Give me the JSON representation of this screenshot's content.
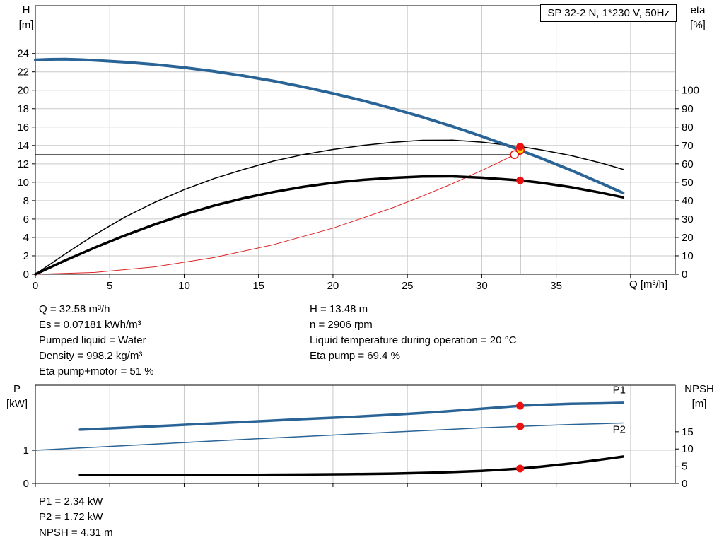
{
  "axes_labels": {
    "h": [
      "H",
      "[m]"
    ],
    "eta": [
      "eta",
      "[%]"
    ],
    "q": "Q [m³/h]",
    "p": [
      "P",
      "[kW]"
    ],
    "npsh": [
      "NPSH",
      "[m]"
    ]
  },
  "info_top_left": [
    "Q = 32.58 m³/h",
    "Es = 0.07181 kWh/m³",
    "Pumped liquid = Water",
    "Density = 998.2 kg/m³",
    "Eta pump+motor = 51 %"
  ],
  "info_top_right": [
    "H = 13.48 m",
    "n = 2906 rpm",
    "Liquid temperature during operation = 20 °C",
    "Eta pump = 69.4 %"
  ],
  "info_bottom": [
    "P1 = 2.34 kW",
    "P2 = 1.72 kW",
    "NPSH = 4.31 m"
  ],
  "colors": {
    "curve_blue": "#2a6496",
    "curve_black": "#000000",
    "curve_red": "#dd2222",
    "marker_red": "#ee1111",
    "marker_yellow": "#ffd400",
    "grid": "#c9c9c9"
  },
  "chart_data": [
    {
      "type": "line",
      "title": "SP 32-2 N, 1*230 V, 50Hz",
      "x": {
        "label": "Q [m³/h]",
        "min": 0,
        "max": 43,
        "ticks": [
          0,
          5,
          10,
          15,
          20,
          25,
          30,
          35
        ],
        "extra_gridlines": [
          40
        ],
        "show_labels": true
      },
      "y_left": {
        "label": "H [m]",
        "min": 0,
        "max": 29.2,
        "ticks": [
          0,
          2,
          4,
          6,
          8,
          10,
          12,
          14,
          16,
          18,
          20,
          22,
          24
        ]
      },
      "y_right": {
        "label": "eta [%]",
        "min": 0,
        "max": 146,
        "ticks": [
          0,
          10,
          20,
          30,
          40,
          50,
          60,
          70,
          80,
          90,
          100
        ]
      },
      "series": [
        {
          "name": "system-curve",
          "axis": "left",
          "color": "#dd2222",
          "width": 1,
          "points": [
            [
              0,
              0
            ],
            [
              4,
              0.2
            ],
            [
              8,
              0.8
            ],
            [
              12,
              1.81
            ],
            [
              16,
              3.21
            ],
            [
              20,
              5.01
            ],
            [
              24,
              7.22
            ],
            [
              26,
              8.48
            ],
            [
              28,
              9.83
            ],
            [
              30,
              11.28
            ],
            [
              31,
              12.05
            ],
            [
              32.2,
              13.0
            ],
            [
              32.7,
              13.4
            ]
          ]
        },
        {
          "name": "eta-pump",
          "axis": "right",
          "color": "#000000",
          "width": 1.5,
          "points": [
            [
              0,
              0
            ],
            [
              2,
              11
            ],
            [
              4,
              21.5
            ],
            [
              6,
              31
            ],
            [
              8,
              39
            ],
            [
              10,
              46
            ],
            [
              12,
              52
            ],
            [
              14,
              57
            ],
            [
              16,
              61.5
            ],
            [
              18,
              65
            ],
            [
              20,
              67.8
            ],
            [
              22,
              70
            ],
            [
              24,
              71.7
            ],
            [
              26,
              72.8
            ],
            [
              28,
              72.9
            ],
            [
              30,
              71.8
            ],
            [
              32.58,
              69.4
            ],
            [
              34,
              67.6
            ],
            [
              36,
              64.5
            ],
            [
              38,
              60.5
            ],
            [
              39.5,
              57
            ]
          ]
        },
        {
          "name": "eta-pump-motor",
          "axis": "right",
          "color": "#000000",
          "width": 3.5,
          "points": [
            [
              0,
              0
            ],
            [
              2,
              7.5
            ],
            [
              4,
              14.5
            ],
            [
              6,
              21
            ],
            [
              8,
              27
            ],
            [
              10,
              32.5
            ],
            [
              12,
              37.3
            ],
            [
              14,
              41.3
            ],
            [
              16,
              44.7
            ],
            [
              18,
              47.5
            ],
            [
              20,
              49.7
            ],
            [
              22,
              51.3
            ],
            [
              24,
              52.4
            ],
            [
              26,
              53.1
            ],
            [
              28,
              53.2
            ],
            [
              30,
              52.5
            ],
            [
              32.58,
              51
            ],
            [
              34,
              49.7
            ],
            [
              36,
              47.3
            ],
            [
              38,
              44.3
            ],
            [
              39.5,
              41.8
            ]
          ]
        },
        {
          "name": "H",
          "axis": "left",
          "color": "#2a6496",
          "width": 4,
          "points": [
            [
              0,
              23.3
            ],
            [
              1,
              23.36
            ],
            [
              2,
              23.38
            ],
            [
              3,
              23.33
            ],
            [
              4,
              23.25
            ],
            [
              6,
              23.06
            ],
            [
              8,
              22.8
            ],
            [
              10,
              22.47
            ],
            [
              12,
              22.06
            ],
            [
              14,
              21.57
            ],
            [
              16,
              21.01
            ],
            [
              18,
              20.37
            ],
            [
              20,
              19.66
            ],
            [
              22,
              18.88
            ],
            [
              24,
              18.02
            ],
            [
              26,
              17.09
            ],
            [
              28,
              16.08
            ],
            [
              30,
              14.99
            ],
            [
              32,
              13.84
            ],
            [
              32.58,
              13.48
            ],
            [
              34,
              12.6
            ],
            [
              36,
              11.3
            ],
            [
              38,
              9.91
            ],
            [
              39.5,
              8.83
            ]
          ]
        }
      ],
      "guide_lines": [
        {
          "type": "h",
          "value": 13,
          "from_x": 0,
          "to_x": 32.58
        },
        {
          "type": "v",
          "x": 32.58,
          "from": 0,
          "to": 14.05
        }
      ],
      "markers": [
        {
          "name": "h-duty-point",
          "x": 32.58,
          "axis": "left",
          "value": 13.48,
          "style": "yellow"
        },
        {
          "name": "eta-pump-duty-point",
          "x": 32.58,
          "axis": "right",
          "value": 69.4,
          "style": "red"
        },
        {
          "name": "eta-pump-motor-duty-point",
          "x": 32.58,
          "axis": "right",
          "value": 51,
          "style": "red"
        },
        {
          "name": "system-curve-setpoint",
          "x": 32.2,
          "axis": "left",
          "value": 13.0,
          "style": "open"
        }
      ]
    },
    {
      "type": "line",
      "title": "Power and NPSH curves",
      "x": {
        "label": "Q [m³/h]",
        "min": 0,
        "max": 43,
        "ticks": [
          0,
          5,
          10,
          15,
          20,
          25,
          30,
          35,
          40
        ],
        "show_labels": false
      },
      "y_left": {
        "label": "P [kW]",
        "min": 0,
        "max": 2.96,
        "ticks": [
          0,
          1
        ]
      },
      "y_right": {
        "label": "NPSH [m]",
        "min": 0,
        "max": 28.5,
        "ticks": [
          0,
          5,
          10,
          15
        ]
      },
      "series": [
        {
          "name": "P1",
          "axis": "left",
          "color": "#2a6496",
          "width": 3.5,
          "label": {
            "text": "P1",
            "x": 38.8,
            "value": 2.72
          },
          "points": [
            [
              3,
              1.62
            ],
            [
              6,
              1.68
            ],
            [
              9,
              1.745
            ],
            [
              12,
              1.81
            ],
            [
              15,
              1.875
            ],
            [
              18,
              1.94
            ],
            [
              21,
              2.0
            ],
            [
              24,
              2.07
            ],
            [
              27,
              2.15
            ],
            [
              30,
              2.25
            ],
            [
              32.58,
              2.34
            ],
            [
              34,
              2.37
            ],
            [
              36,
              2.4
            ],
            [
              38,
              2.415
            ],
            [
              39.5,
              2.43
            ]
          ]
        },
        {
          "name": "P2",
          "axis": "left",
          "color": "#2a6496",
          "width": 1.5,
          "label": {
            "text": "P2",
            "x": 38.8,
            "value": 1.52
          },
          "points": [
            [
              0,
              1.0
            ],
            [
              3,
              1.07
            ],
            [
              6,
              1.14
            ],
            [
              9,
              1.21
            ],
            [
              12,
              1.28
            ],
            [
              15,
              1.35
            ],
            [
              18,
              1.415
            ],
            [
              21,
              1.48
            ],
            [
              24,
              1.545
            ],
            [
              27,
              1.61
            ],
            [
              30,
              1.675
            ],
            [
              32.58,
              1.72
            ],
            [
              34,
              1.745
            ],
            [
              36,
              1.775
            ],
            [
              38,
              1.8
            ],
            [
              39.5,
              1.82
            ]
          ]
        },
        {
          "name": "NPSH",
          "axis": "right",
          "color": "#000000",
          "width": 3.5,
          "points": [
            [
              3,
              2.5
            ],
            [
              6,
              2.5
            ],
            [
              9,
              2.5
            ],
            [
              12,
              2.5
            ],
            [
              15,
              2.52
            ],
            [
              18,
              2.58
            ],
            [
              21,
              2.68
            ],
            [
              24,
              2.85
            ],
            [
              27,
              3.15
            ],
            [
              30,
              3.65
            ],
            [
              32.58,
              4.31
            ],
            [
              34,
              4.85
            ],
            [
              36,
              5.8
            ],
            [
              38,
              6.9
            ],
            [
              39.5,
              7.8
            ]
          ]
        }
      ],
      "markers": [
        {
          "name": "p1-duty-point",
          "x": 32.58,
          "axis": "left",
          "value": 2.34,
          "style": "red"
        },
        {
          "name": "p2-duty-point",
          "x": 32.58,
          "axis": "left",
          "value": 1.72,
          "style": "red"
        },
        {
          "name": "npsh-duty-point",
          "x": 32.58,
          "axis": "right",
          "value": 4.31,
          "style": "red"
        }
      ]
    }
  ]
}
